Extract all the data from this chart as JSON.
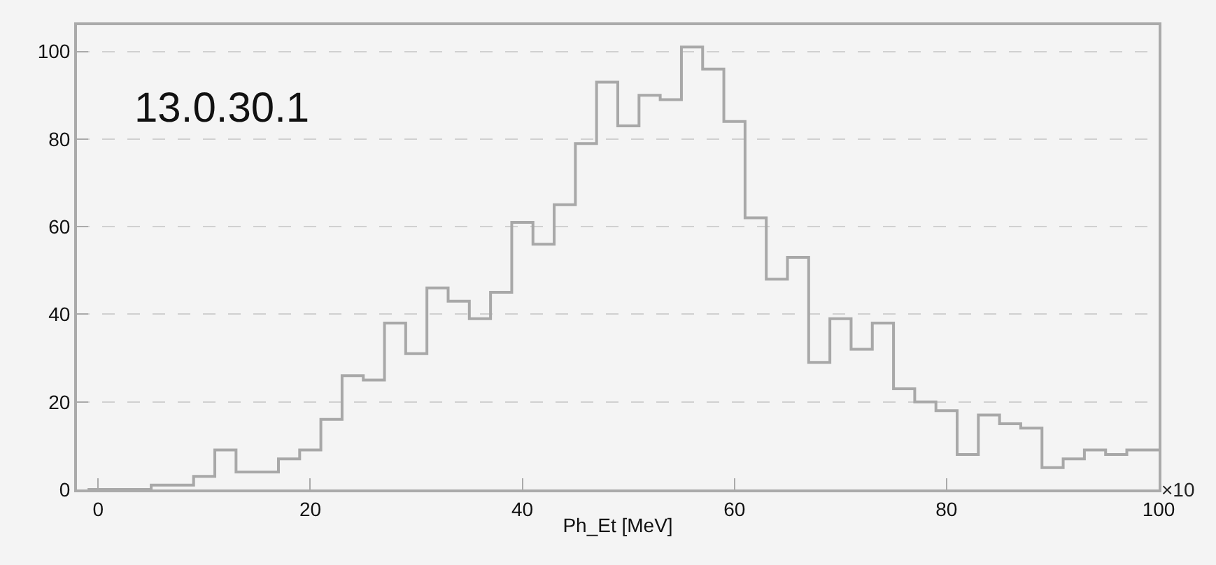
{
  "chart_data": {
    "type": "histogram",
    "xlabel": "Ph_Et [MeV]",
    "bins": [
      -1,
      1,
      3,
      5,
      7,
      9,
      11,
      13,
      15,
      17,
      19,
      21,
      23,
      25,
      27,
      29,
      31,
      33,
      35,
      37,
      39,
      41,
      43,
      45,
      47,
      49,
      51,
      53,
      55,
      57,
      59,
      61,
      63,
      65,
      67,
      69,
      71,
      73,
      75,
      77,
      79,
      81,
      83,
      85,
      87,
      89,
      91,
      93,
      95,
      97,
      99,
      100
    ],
    "values": [
      0,
      0,
      0,
      1,
      1,
      3,
      9,
      4,
      4,
      7,
      9,
      16,
      26,
      25,
      38,
      31,
      46,
      43,
      39,
      45,
      61,
      56,
      65,
      79,
      93,
      83,
      90,
      89,
      101,
      96,
      84,
      62,
      48,
      53,
      29,
      39,
      32,
      38,
      23,
      20,
      18,
      8,
      17,
      15,
      14,
      5,
      7,
      9,
      8,
      9,
      9
    ],
    "color": "#a8a8a8",
    "xlim": [
      -2,
      100
    ],
    "xticks": [
      0,
      20,
      40,
      60,
      80,
      100
    ],
    "ylim": [
      0,
      106
    ],
    "yticks": [
      0,
      20,
      40,
      60,
      80,
      100
    ],
    "grid": "y",
    "annotations": [
      "13.0.30.1",
      "×10"
    ]
  }
}
